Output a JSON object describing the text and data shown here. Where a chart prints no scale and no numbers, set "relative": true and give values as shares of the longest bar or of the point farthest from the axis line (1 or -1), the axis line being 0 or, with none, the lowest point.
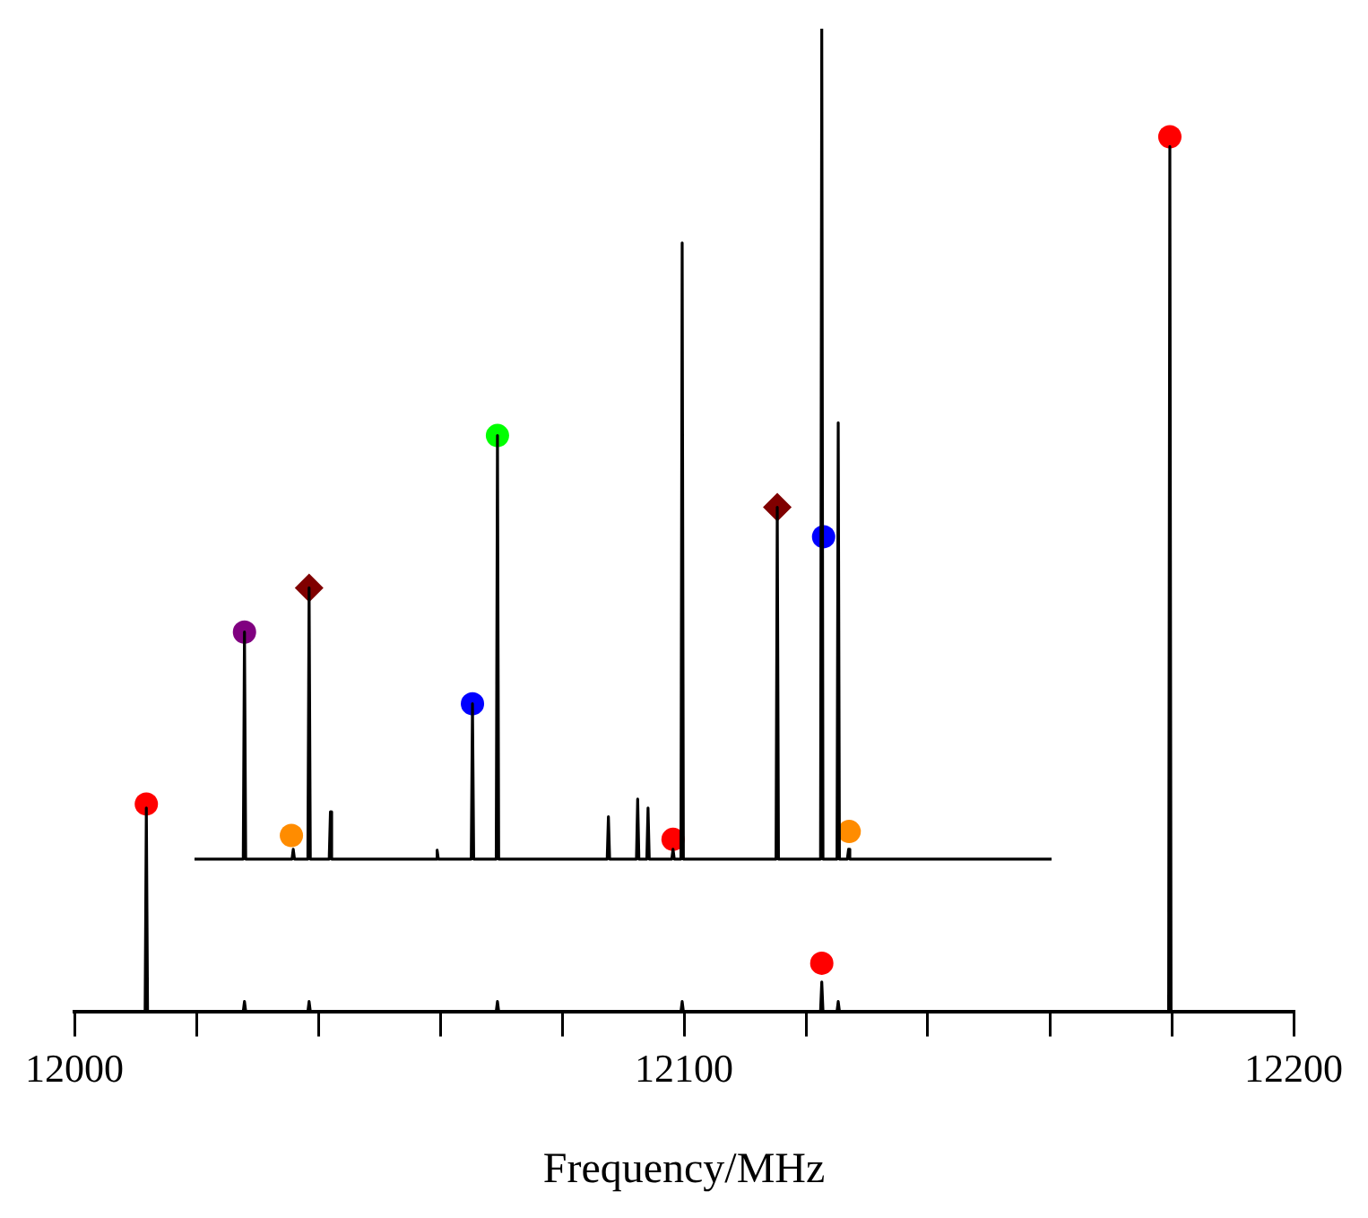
{
  "chart_data": {
    "type": "line",
    "relative": true,
    "xlabel": "Frequency/MHz",
    "xlim": [
      12000,
      12200
    ],
    "xticks": [
      12000,
      {
        "value": 12020,
        "label": null
      },
      {
        "value": 12040,
        "label": null
      },
      {
        "value": 12060,
        "label": null
      },
      {
        "value": 12080,
        "label": null
      },
      12100,
      {
        "value": 12120,
        "label": null
      },
      {
        "value": 12140,
        "label": null
      },
      {
        "value": 12160,
        "label": null
      },
      {
        "value": 12180,
        "label": null
      },
      12200
    ],
    "grid": false,
    "legend": false,
    "marker": "none",
    "series": [
      {
        "color": "#000000",
        "x": [
          12000,
          12011.6,
          12011.8,
          12012,
          12027.7,
          12027.9,
          12028.1,
          12038.3,
          12038.5,
          12038.7,
          12069.2,
          12069.4,
          12069.6,
          12099.5,
          12099.7,
          12099.9,
          12122.4,
          12122.6,
          12122.8,
          12125.1,
          12125.3,
          12125.5,
          12179.5,
          12179.7,
          12179.9,
          12200
        ],
        "values": [
          0,
          0,
          0.207,
          0,
          0,
          0.01,
          0,
          0,
          0.01,
          0,
          0,
          0.01,
          0,
          0,
          0.01,
          0,
          0,
          0.03,
          0,
          0,
          0.01,
          0,
          0,
          0.88,
          0,
          0
        ]
      },
      {
        "color": "#000000",
        "x": [
          12019.7,
          12027.7,
          12027.9,
          12028.1,
          12035.7,
          12035.9,
          12036.1,
          12038.3,
          12038.5,
          12038.7,
          12041.8,
          12042,
          12042.2,
          12059.3,
          12059.5,
          12059.7,
          12065.1,
          12065.3,
          12065.5,
          12069.2,
          12069.4,
          12069.6,
          12087.4,
          12087.6,
          12087.8,
          12092.2,
          12092.4,
          12092.6,
          12093.9,
          12094.1,
          12094.3,
          12098,
          12098.2,
          12098.4,
          12099.5,
          12099.7,
          12099.9,
          12115.1,
          12115.3,
          12115.5,
          12122.4,
          12122.6,
          12122.8,
          12125.1,
          12125.3,
          12125.5,
          12126.8,
          12127,
          12127.2,
          12160.3
        ],
        "values": [
          0.155,
          0.155,
          0.386,
          0.155,
          0.155,
          0.165,
          0.155,
          0.155,
          0.431,
          0.155,
          0.155,
          0.203,
          0.155,
          0.155,
          0.164,
          0.155,
          0.155,
          0.313,
          0.155,
          0.155,
          0.586,
          0.155,
          0.155,
          0.198,
          0.155,
          0.155,
          0.216,
          0.155,
          0.155,
          0.207,
          0.155,
          0.155,
          0.165,
          0.155,
          0.155,
          0.782,
          0.155,
          0.155,
          0.513,
          0.155,
          0.155,
          1.0,
          0.155,
          0.155,
          0.599,
          0.155,
          0.155,
          0.165,
          0.155,
          0.155
        ]
      },
      {
        "type": "scatter",
        "marker": "circle",
        "x": [
          12011.8,
          12027.9,
          12035.6,
          12065.3,
          12069.4,
          12098.2,
          12122.6,
          12122.9,
          12127.1,
          12179.7
        ],
        "values": [
          0.211,
          0.386,
          0.179,
          0.313,
          0.586,
          0.175,
          0.049,
          0.483,
          0.183,
          0.89
        ],
        "colors": [
          "#ff0000",
          "#800080",
          "#ff8c00",
          "#0000ff",
          "#00ff00",
          "#ff0000",
          "#ff0000",
          "#0000ff",
          "#ff8c00",
          "#ff0000"
        ]
      },
      {
        "type": "scatter",
        "marker": "diamond",
        "x": [
          12038.5,
          12115.3
        ],
        "values": [
          0.431,
          0.513
        ],
        "colors": [
          "#800000",
          "#800000"
        ]
      }
    ]
  }
}
